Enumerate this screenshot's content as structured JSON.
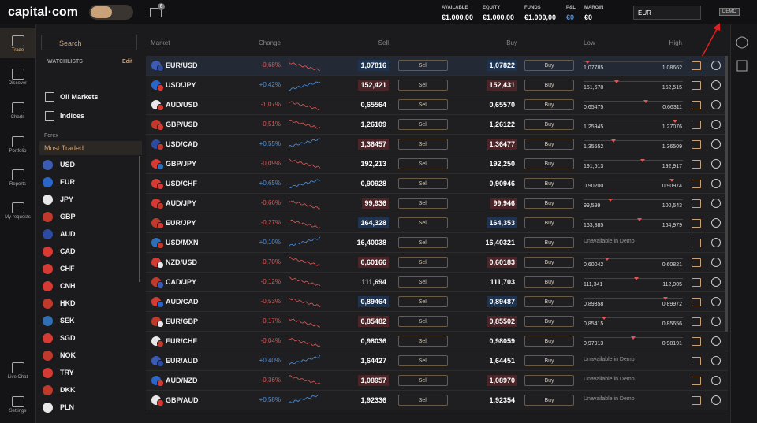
{
  "header": {
    "logo": "capital·com",
    "notifications": "6",
    "account": [
      {
        "label": "AVAILABLE",
        "value": "€1.000,00"
      },
      {
        "label": "EQUITY",
        "value": "€1.000,00"
      },
      {
        "label": "FUNDS",
        "value": "€1.000,00"
      },
      {
        "label": "P&L",
        "value": "€0"
      },
      {
        "label": "MARGIN",
        "value": "€0"
      }
    ],
    "currency": "EUR",
    "mode": "DEMO"
  },
  "nav": [
    "Trade",
    "Discover",
    "Charts",
    "Portfolio",
    "Reports",
    "My requests",
    "Live Chat",
    "Settings"
  ],
  "sidebar": {
    "search": "Search",
    "watchlists": "WATCHLISTS",
    "edit": "Edit",
    "groups": [
      "Oil Markets",
      "Indices"
    ],
    "section": "Forex",
    "selected": "Most Traded",
    "currencies": [
      "USD",
      "EUR",
      "JPY",
      "GBP",
      "AUD",
      "CAD",
      "CHF",
      "CNH",
      "HKD",
      "SEK",
      "SGD",
      "NOK",
      "TRY",
      "DKK",
      "PLN"
    ]
  },
  "table": {
    "columns": [
      "Market",
      "Change",
      "Sell",
      "Buy",
      "Low",
      "High"
    ],
    "sell_button": "Sell",
    "buy_button": "Buy",
    "rows": [
      {
        "market": "EUR/USD",
        "change": "-0,68%",
        "sell": "1,07816",
        "buy": "1,07822",
        "low": "1,07785",
        "high": "1,08662"
      },
      {
        "market": "USD/JPY",
        "change": "+0,42%",
        "sell": "152,421",
        "buy": "152,431",
        "low": "151,678",
        "high": "152,515"
      },
      {
        "market": "AUD/USD",
        "change": "-1,07%",
        "sell": "0,65564",
        "buy": "0,65570",
        "low": "0,65475",
        "high": "0,66311"
      },
      {
        "market": "GBP/USD",
        "change": "-0,51%",
        "sell": "1,26109",
        "buy": "1,26122",
        "low": "1,25945",
        "high": "1,27076"
      },
      {
        "market": "USD/CAD",
        "change": "+0,55%",
        "sell": "1,36457",
        "buy": "1,36477",
        "low": "1,35552",
        "high": "1,36509"
      },
      {
        "market": "GBP/JPY",
        "change": "-0,09%",
        "sell": "192,213",
        "buy": "192,250",
        "low": "191,513",
        "high": "192,917"
      },
      {
        "market": "USD/CHF",
        "change": "+0,65%",
        "sell": "0,90928",
        "buy": "0,90946",
        "low": "0,90200",
        "high": "0,90974"
      },
      {
        "market": "AUD/JPY",
        "change": "-0,66%",
        "sell": "99,936",
        "buy": "99,946",
        "low": "99,599",
        "high": "100,643"
      },
      {
        "market": "EUR/JPY",
        "change": "-0,27%",
        "sell": "164,328",
        "buy": "164,353",
        "low": "163,885",
        "high": "164,979"
      },
      {
        "market": "USD/MXN",
        "change": "+0,10%",
        "sell": "16,40038",
        "buy": "16,40321",
        "unavailable": "Unavailable in Demo"
      },
      {
        "market": "NZD/USD",
        "change": "-0,70%",
        "sell": "0,60166",
        "buy": "0,60183",
        "low": "0,60042",
        "high": "0,60821"
      },
      {
        "market": "CAD/JPY",
        "change": "-0,12%",
        "sell": "111,694",
        "buy": "111,703",
        "low": "111,341",
        "high": "112,005"
      },
      {
        "market": "AUD/CAD",
        "change": "-0,53%",
        "sell": "0,89464",
        "buy": "0,89487",
        "low": "0,89358",
        "high": "0,89972"
      },
      {
        "market": "EUR/GBP",
        "change": "-0,17%",
        "sell": "0,85482",
        "buy": "0,85502",
        "low": "0,85415",
        "high": "0,85656"
      },
      {
        "market": "EUR/CHF",
        "change": "-0,04%",
        "sell": "0,98036",
        "buy": "0,98059",
        "low": "0,97913",
        "high": "0,98191"
      },
      {
        "market": "EUR/AUD",
        "change": "+0,40%",
        "sell": "1,64427",
        "buy": "1,64451",
        "unavailable": "Unavailable in Demo"
      },
      {
        "market": "AUD/NZD",
        "change": "-0,36%",
        "sell": "1,08957",
        "buy": "1,08970",
        "unavailable": "Unavailable in Demo"
      },
      {
        "market": "GBP/AUD",
        "change": "+0,58%",
        "sell": "1,92336",
        "buy": "1,92354",
        "unavailable": "Unavailable in Demo"
      }
    ]
  }
}
